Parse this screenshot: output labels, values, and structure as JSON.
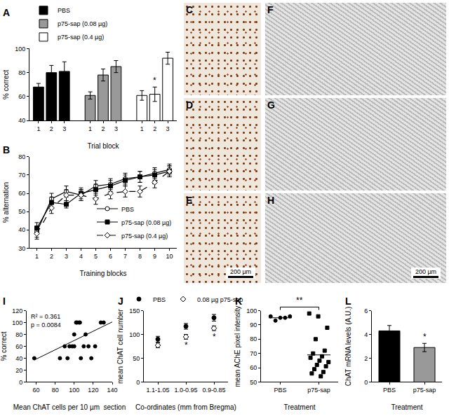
{
  "chart_data": [
    {
      "panel": "A",
      "type": "bar",
      "categories": [
        "1",
        "2",
        "3"
      ],
      "x_label": "Trial block",
      "y_label": "% correct",
      "ylim": [
        40,
        100
      ],
      "yticks": [
        40,
        60,
        80,
        100
      ],
      "legend": "top left",
      "series": [
        {
          "name": "PBS",
          "color": "#000000",
          "values": [
            68,
            80,
            81
          ],
          "errors": [
            3,
            6,
            8
          ]
        },
        {
          "name": "p75-sap (0.08 µg)",
          "color": "#999999",
          "values": [
            61,
            78,
            85
          ],
          "errors": [
            3,
            5,
            5
          ]
        },
        {
          "name": "p75-sap (0.4 µg)",
          "color": "#ffffff",
          "values": [
            61,
            62,
            92
          ],
          "errors": [
            4,
            6,
            5
          ]
        }
      ],
      "annotations": [
        {
          "series": "p75-sap (0.4 µg)",
          "category": "2",
          "text": "*"
        }
      ]
    },
    {
      "panel": "B",
      "type": "line",
      "x": [
        1,
        2,
        3,
        4,
        5,
        6,
        7,
        8,
        9,
        10
      ],
      "x_label": "Training blocks",
      "y_label": "% alternation",
      "xlim": [
        0.5,
        10.5
      ],
      "xticks": [
        1,
        2,
        3,
        4,
        5,
        6,
        7,
        8,
        9,
        10
      ],
      "ylim": [
        30,
        80
      ],
      "yticks": [
        30,
        40,
        50,
        60,
        70,
        80
      ],
      "legend": "bottom right",
      "series": [
        {
          "name": "PBS",
          "color": "#000000",
          "marker": "circle-open",
          "line_style": "solid",
          "values": [
            39,
            57,
            61,
            59,
            64,
            65,
            68,
            69,
            71,
            73
          ],
          "errors": [
            3,
            3,
            3,
            3,
            3,
            3,
            3,
            3,
            3,
            3
          ]
        },
        {
          "name": "p75-sap (0.08 µg)",
          "color": "#000000",
          "marker": "square",
          "line_style": "solid",
          "values": [
            41,
            55,
            54,
            60,
            62,
            64,
            67,
            69,
            70,
            72
          ],
          "errors": [
            3,
            3,
            2,
            3,
            3,
            3,
            3,
            3,
            3,
            3
          ]
        },
        {
          "name": "p75-sap (0.4 µg)",
          "color": "#000000",
          "marker": "diamond-open",
          "line_style": "dash",
          "values": [
            38,
            52,
            59,
            59,
            57,
            60,
            61,
            61,
            66,
            72
          ],
          "errors": [
            3,
            3,
            3,
            3,
            3,
            3,
            3,
            3,
            3,
            3
          ]
        }
      ]
    },
    {
      "panel": "I",
      "type": "scatter",
      "color": "#000000",
      "marker": "circle",
      "x": [
        58,
        85,
        90,
        93,
        95,
        98,
        100,
        100,
        102,
        103,
        105,
        106,
        107,
        110,
        112,
        115,
        118,
        122,
        128,
        131
      ],
      "values": [
        40,
        40,
        60,
        40,
        60,
        60,
        60,
        80,
        100,
        100,
        100,
        100,
        40,
        60,
        80,
        60,
        40,
        60,
        100,
        100
      ],
      "x_label": "Mean ChAT cells per 10 µm  section",
      "y_label": "% correct",
      "xlim": [
        50,
        140
      ],
      "xticks": [
        60,
        80,
        100,
        120,
        140
      ],
      "ylim": [
        0,
        120
      ],
      "yticks": [
        0,
        20,
        40,
        60,
        80,
        100,
        120
      ],
      "trend_line": {
        "x": [
          58,
          140
        ],
        "values": [
          37,
          101
        ]
      },
      "annotations": [
        "R² = 0.361",
        "p = 0.0084"
      ]
    },
    {
      "panel": "J",
      "type": "scatter",
      "categories": [
        "1.1-1.05",
        "1.0-0.95",
        "0.9-0.85"
      ],
      "x_label": "Co-ordinates (mm from Bregma)",
      "y_label": "mean ChAT cell number",
      "ylim": [
        0,
        150
      ],
      "yticks": [
        0,
        50,
        100,
        150
      ],
      "legend": "top",
      "series": [
        {
          "name": "PBS",
          "color": "#000000",
          "marker": "circle",
          "values": [
            90,
            117,
            135
          ],
          "errors": [
            6,
            6,
            7
          ]
        },
        {
          "name": "0.08 µg p75-sap",
          "color": "#000000",
          "marker": "diamond-open",
          "values": [
            77,
            95,
            113
          ],
          "errors": [
            5,
            5,
            5
          ]
        }
      ],
      "annotations": [
        {
          "series": "0.08 µg p75-sap",
          "category": "1.0-0.95",
          "text": "*"
        },
        {
          "series": "0.08 µg p75-sap",
          "category": "0.9-0.85",
          "text": "*"
        }
      ]
    },
    {
      "panel": "K",
      "type": "strip",
      "categories": [
        "PBS",
        "p75-sap"
      ],
      "color": "#000000",
      "markers": [
        "circle",
        "square"
      ],
      "x_label": "Treatment",
      "y_label": "mean AChE pixel intensity",
      "ylim": [
        50,
        100
      ],
      "yticks": [
        50,
        60,
        70,
        80,
        90,
        100
      ],
      "points": [
        [
          96,
          95,
          96,
          93,
          95
        ],
        [
          98,
          96,
          88,
          80,
          72,
          70,
          68,
          67,
          65,
          64,
          62,
          61,
          59,
          57,
          56,
          54
        ]
      ],
      "means": [
        95,
        69
      ],
      "annotations": [
        {
          "text": "**"
        }
      ]
    },
    {
      "panel": "L",
      "type": "bar",
      "categories": [
        "PBS",
        "p75-sap"
      ],
      "values": [
        4.3,
        2.9
      ],
      "errors": [
        0.45,
        0.35
      ],
      "colors": [
        "#000000",
        "#999999"
      ],
      "x_label": "Treatment",
      "y_label": "ChAT mRNA levels (A.U.)",
      "ylim": [
        0,
        6
      ],
      "yticks": [
        0,
        2,
        4,
        6
      ],
      "annotations": [
        {
          "category": "p75-sap",
          "text": "*"
        }
      ]
    }
  ],
  "micrographs": {
    "panels": [
      "C",
      "D",
      "E",
      "F",
      "G",
      "H"
    ],
    "scale_bars": [
      {
        "panel": "E",
        "text": "200 µm"
      },
      {
        "panel": "H",
        "text": "200 µm"
      }
    ]
  }
}
